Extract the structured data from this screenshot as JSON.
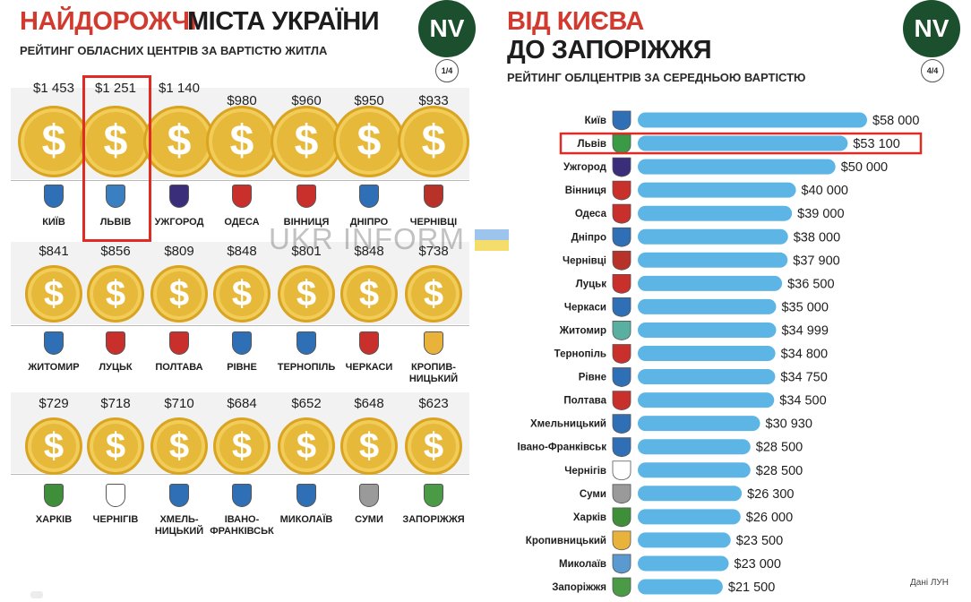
{
  "left": {
    "title_red": "НАЙДОРОЖЧІ",
    "title_black": "МІСТА УКРАЇНИ",
    "subtitle": "РЕЙТИНГ ОБЛАСНИХ ЦЕНТРІВ ЗА ВАРТІСТЮ ЖИТЛА",
    "logo": "NV",
    "page": "1/4",
    "coin_symbol": "$",
    "rows": [
      [
        {
          "price": "$1 453",
          "city": [
            "КИЇВ"
          ]
        },
        {
          "price": "$1 251",
          "city": [
            "ЛЬВІВ"
          ]
        },
        {
          "price": "$1 140",
          "city": [
            "УЖГОРОД"
          ]
        },
        {
          "price": "$980",
          "city": [
            "ОДЕСА"
          ]
        },
        {
          "price": "$960",
          "city": [
            "ВІННИЦЯ"
          ]
        },
        {
          "price": "$950",
          "city": [
            "ДНІПРО"
          ]
        },
        {
          "price": "$933",
          "city": [
            "ЧЕРНІВЦІ"
          ]
        }
      ],
      [
        {
          "price": "$841",
          "city": [
            "ЖИТОМИР"
          ]
        },
        {
          "price": "$856",
          "city": [
            "ЛУЦЬК"
          ]
        },
        {
          "price": "$809",
          "city": [
            "ПОЛТАВА"
          ]
        },
        {
          "price": "$848",
          "city": [
            "РІВНЕ"
          ]
        },
        {
          "price": "$801",
          "city": [
            "ТЕРНОПІЛЬ"
          ]
        },
        {
          "price": "$848",
          "city": [
            "ЧЕРКАСИ"
          ]
        },
        {
          "price": "$738",
          "city": [
            "КРОПИВ-",
            "НИЦЬКИЙ"
          ]
        }
      ],
      [
        {
          "price": "$729",
          "city": [
            "ХАРКІВ"
          ]
        },
        {
          "price": "$718",
          "city": [
            "ЧЕРНІГІВ"
          ]
        },
        {
          "price": "$710",
          "city": [
            "ХМЕЛЬ-",
            "НИЦЬКИЙ"
          ]
        },
        {
          "price": "$684",
          "city": [
            "ІВАНО-",
            "ФРАНКІВСЬК"
          ]
        },
        {
          "price": "$652",
          "city": [
            "МИКОЛАЇВ"
          ]
        },
        {
          "price": "$648",
          "city": [
            "СУМИ"
          ]
        },
        {
          "price": "$623",
          "city": [
            "ЗАПОРІЖЖЯ"
          ]
        }
      ]
    ],
    "crest_colors": [
      [
        "#2f6fb6",
        "#3a7fc1",
        "#3a2d7a",
        "#c9302c",
        "#c9302c",
        "#2f6fb6",
        "#b8322a"
      ],
      [
        "#2f6fb6",
        "#c9302c",
        "#c9302c",
        "#2f6fb6",
        "#2f6fb6",
        "#c9302c",
        "#e9b23a"
      ],
      [
        "#3f8f3a",
        "#ffffff",
        "#2f6fb6",
        "#2f6fb6",
        "#2f6fb6",
        "#9a9a9a",
        "#4a9a46"
      ]
    ]
  },
  "right": {
    "title_line1": "ВІД КИЄВА",
    "title_line2": "ДО ЗАПОРІЖЖЯ",
    "subtitle": "РЕЙТИНГ ОБЛЦЕНТРІВ ЗА СЕРЕДНЬОЮ ВАРТІСТЮ",
    "logo": "NV",
    "page": "4/4",
    "source": "Дані ЛУН",
    "bar_color": "#5db5e6",
    "highlight_color": "#e02b24",
    "highlight_city": "Львів",
    "crest_colors": [
      "#2f6fb6",
      "#3a9a46",
      "#3a2d7a",
      "#c9302c",
      "#c9302c",
      "#2f6fb6",
      "#b8322a",
      "#c9302c",
      "#2f6fb6",
      "#5ab0a0",
      "#c9302c",
      "#2f6fb6",
      "#c9302c",
      "#2f6fb6",
      "#2f6fb6",
      "#ffffff",
      "#9a9a9a",
      "#3f8f3a",
      "#e9b23a",
      "#5a9ad0",
      "#4a9a46"
    ]
  },
  "watermark": "UKR INFORM",
  "chart_data": {
    "type": "bar",
    "orientation": "horizontal",
    "categories": [
      "Київ",
      "Львів",
      "Ужгород",
      "Вінниця",
      "Одеса",
      "Дніпро",
      "Чернівці",
      "Луцьк",
      "Черкаси",
      "Житомир",
      "Тернопіль",
      "Рівне",
      "Полтава",
      "Хмельницький",
      "Івано-Франківськ",
      "Чернігів",
      "Суми",
      "Харків",
      "Кропивницький",
      "Миколаїв",
      "Запоріжжя"
    ],
    "values": [
      58000,
      53100,
      50000,
      40000,
      39000,
      38000,
      37900,
      36500,
      35000,
      34999,
      34800,
      34750,
      34500,
      30930,
      28500,
      28500,
      26300,
      26000,
      23500,
      23000,
      21500
    ],
    "value_labels": [
      "$58 000",
      "$53 100",
      "$50 000",
      "$40 000",
      "$39 000",
      "$38 000",
      "$37 900",
      "$36 500",
      "$35 000",
      "$34 999",
      "$34 800",
      "$34 750",
      "$34 500",
      "$30 930",
      "$28 500",
      "$28 500",
      "$26 300",
      "$26 000",
      "$23 500",
      "$23 000",
      "$21 500"
    ],
    "title": "ВІД КИЄВА ДО ЗАПОРІЖЖЯ",
    "subtitle": "РЕЙТИНГ ОБЛЦЕНТРІВ ЗА СЕРЕДНЬОЮ ВАРТІСТЮ",
    "xlabel": "",
    "ylabel": "",
    "grid": false
  }
}
